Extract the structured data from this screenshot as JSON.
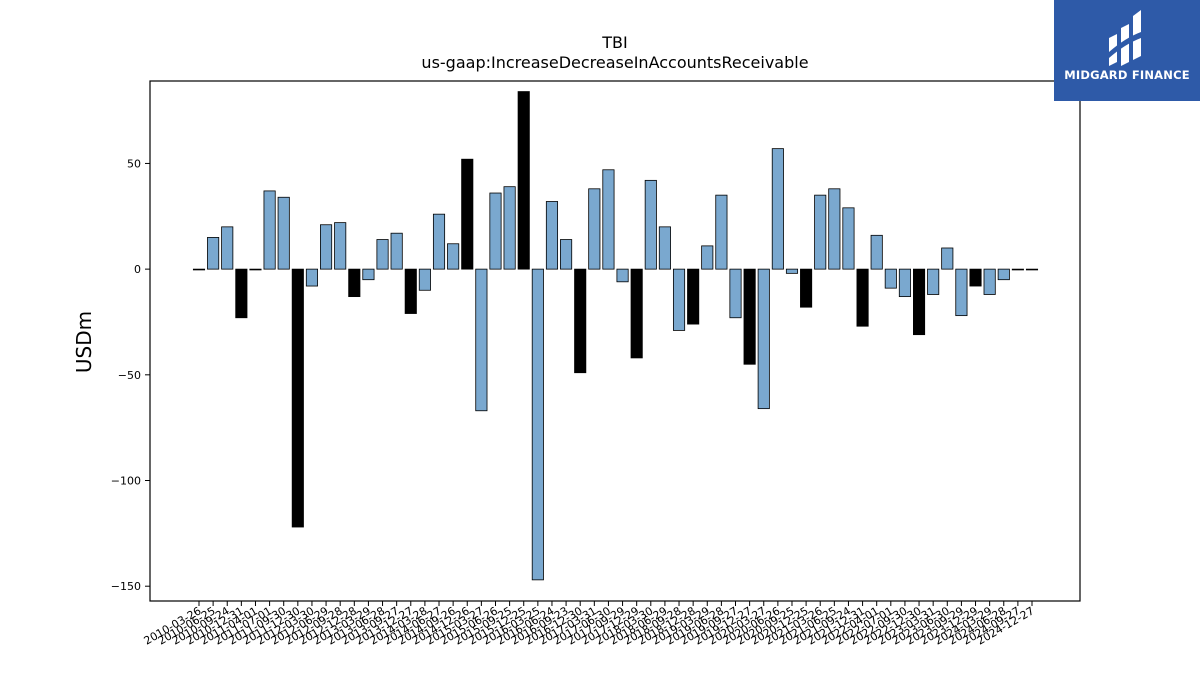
{
  "chart_data": {
    "type": "bar",
    "title": "TBI",
    "subtitle": "us-gaap:IncreaseDecreaseInAccountsReceivable",
    "xlabel": "",
    "ylabel": "USDm",
    "ylim": [
      -157,
      89
    ],
    "yticks": [
      50,
      0,
      -50,
      -100,
      -150
    ],
    "ytick_labels": [
      "50",
      "0",
      "−50",
      "−100",
      "−150"
    ],
    "grid": false,
    "colors": {
      "quarter": "#7aa8cf",
      "annual": "#000000"
    },
    "categories": [
      "2010-03-26",
      "2010-06-25",
      "2010-09-24",
      "2010-12-31",
      "2011-04-01",
      "2011-07-01",
      "2011-09-30",
      "2011-12-30",
      "2012-03-30",
      "2012-06-29",
      "2012-09-28",
      "2012-12-28",
      "2013-03-29",
      "2013-06-28",
      "2013-09-27",
      "2013-12-27",
      "2014-03-28",
      "2014-06-27",
      "2014-09-26",
      "2014-12-26",
      "2015-03-27",
      "2015-06-26",
      "2015-09-25",
      "2015-12-25",
      "2016-03-25",
      "2016-06-24",
      "2016-09-23",
      "2016-12-30",
      "2017-03-31",
      "2017-06-30",
      "2017-09-29",
      "2017-12-29",
      "2018-03-30",
      "2018-06-29",
      "2018-09-28",
      "2018-12-28",
      "2019-03-29",
      "2019-06-28",
      "2019-09-27",
      "2019-12-27",
      "2020-03-27",
      "2020-06-26",
      "2020-09-25",
      "2020-12-25",
      "2021-03-26",
      "2021-06-25",
      "2021-09-24",
      "2021-12-31",
      "2022-04-01",
      "2022-07-01",
      "2022-09-30",
      "2022-12-30",
      "2023-03-31",
      "2023-06-30",
      "2023-09-29",
      "2023-12-29",
      "2024-03-29",
      "2024-06-28",
      "2024-09-27",
      "2024-12-27"
    ],
    "visible_tick_labels": [
      "2010-03-26",
      "2010-06-25",
      "2010-09-24",
      "2010-12-31",
      "2011-04-01",
      "2011-07-01",
      "2011-09-30",
      "2011-12-30",
      "2012-03-30",
      "2012-06-29",
      "2012-09-28",
      "2012-12-28",
      "2013-03-29",
      "2013-06-28",
      "2013-09-27",
      "2013-12-27",
      "2014-03-28",
      "2014-06-27",
      "2014-09-26",
      "2014-12-26",
      "2015-03-27",
      "2015-06-26",
      "2015-09-25",
      "2015-12-25",
      "2016-03-25",
      "2016-06-24",
      "2016-09-23",
      "2016-12-30",
      "2017-03-31",
      "2017-06-30",
      "2017-09-29",
      "2017-12-29",
      "2018-03-30",
      "2018-06-29",
      "2018-09-28",
      "2018-12-28",
      "2019-03-29",
      "2019-06-28",
      "2019-09-27",
      "2019-12-27",
      "2020-03-27",
      "2020-06-26",
      "2020-09-25",
      "2020-12-25",
      "2021-03-26",
      "2021-06-25",
      "2021-09-24",
      "2021-12-31",
      "2022-04-01",
      "2022-07-01",
      "2022-09-30",
      "2022-12-30",
      "2023-03-31",
      "2023-06-30",
      "2023-09-29",
      "2023-12-29",
      "2024-03-29",
      "2024-06-28",
      "2024-09-27",
      "2024-12-27"
    ],
    "values": [
      0,
      15,
      20,
      -23,
      0,
      37,
      34,
      -122,
      -8,
      21,
      22,
      -13,
      -5,
      14,
      17,
      -21,
      -10,
      26,
      12,
      52,
      -67,
      36,
      39,
      84,
      -147,
      32,
      14,
      -49,
      38,
      47,
      -6,
      -42,
      42,
      20,
      -29,
      -26,
      11,
      35,
      -23,
      -45,
      -66,
      57,
      -2,
      -18,
      35,
      38,
      29,
      -27,
      16,
      -9,
      -13,
      -31,
      -12,
      10,
      -22,
      -8,
      -12,
      -5,
      0,
      0
    ],
    "annual": [
      false,
      false,
      false,
      true,
      false,
      false,
      false,
      true,
      false,
      false,
      false,
      true,
      false,
      false,
      false,
      true,
      false,
      false,
      false,
      true,
      false,
      false,
      false,
      true,
      false,
      false,
      false,
      true,
      false,
      false,
      false,
      true,
      false,
      false,
      false,
      true,
      false,
      false,
      false,
      true,
      false,
      false,
      false,
      true,
      false,
      false,
      false,
      true,
      false,
      false,
      false,
      true,
      false,
      false,
      false,
      true,
      false,
      false,
      false,
      true
    ]
  },
  "logo": {
    "text": "MIDGARD FINANCE"
  }
}
